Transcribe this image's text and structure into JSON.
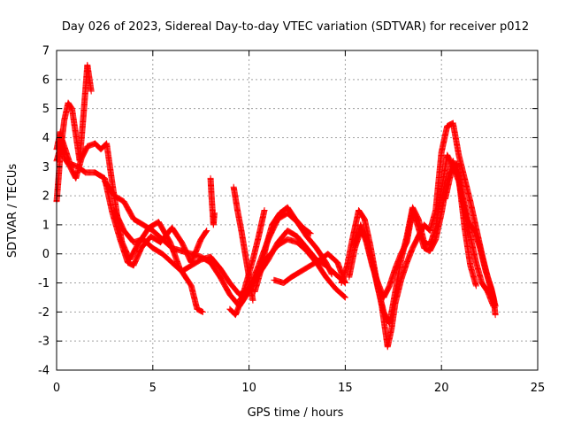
{
  "chart_data": {
    "type": "scatter",
    "title": "Day 026 of 2023, Sidereal Day-to-day VTEC variation (SDTVAR) for receiver p012",
    "xlabel": "GPS time / hours",
    "ylabel": "SDTVAR / TECUs",
    "xlim": [
      0,
      25
    ],
    "ylim": [
      -4,
      7
    ],
    "xticks": [
      "0",
      "5",
      "10",
      "15",
      "20",
      "25"
    ],
    "yticks": [
      "-4",
      "-3",
      "-2",
      "-1",
      "0",
      "1",
      "2",
      "3",
      "4",
      "5",
      "6",
      "7"
    ],
    "grid": true,
    "marker": "+",
    "series": [
      {
        "name": "SDTVAR",
        "color": "#ff0000",
        "tracks": [
          {
            "x": [
              0.0,
              0.1,
              0.2,
              0.4,
              0.6,
              0.8,
              1.0,
              1.2,
              1.4,
              1.6,
              1.8
            ],
            "y": [
              1.8,
              2.6,
              3.5,
              4.6,
              5.2,
              5.0,
              4.1,
              3.2,
              4.8,
              6.5,
              5.6
            ]
          },
          {
            "x": [
              0.0,
              0.2,
              0.4,
              0.7,
              1.0,
              1.3,
              1.6,
              2.0,
              2.3,
              2.6,
              2.9,
              3.2,
              3.4,
              3.6,
              3.8,
              4.2,
              4.8,
              5.3,
              5.9,
              6.4,
              7.0,
              7.3,
              7.6
            ],
            "y": [
              3.6,
              4.2,
              3.3,
              3.0,
              2.6,
              3.3,
              3.7,
              3.8,
              3.6,
              3.8,
              2.4,
              1.1,
              0.4,
              0.1,
              -0.2,
              0.3,
              0.9,
              1.1,
              0.4,
              -0.5,
              -1.1,
              -1.9,
              -2.0
            ]
          },
          {
            "x": [
              0.0,
              0.3,
              0.7,
              1.1,
              1.5,
              2.0,
              2.5,
              2.9,
              3.3,
              3.7,
              4.0,
              4.4,
              4.9,
              5.4,
              6.0,
              6.5,
              7.0,
              7.5,
              7.8
            ],
            "y": [
              3.2,
              3.9,
              3.1,
              3.0,
              2.8,
              2.8,
              2.6,
              1.4,
              0.5,
              -0.3,
              -0.4,
              0.2,
              0.6,
              0.4,
              0.9,
              0.4,
              -0.3,
              0.5,
              0.8
            ]
          },
          {
            "x": [
              2.5,
              3.0,
              3.5,
              4.0,
              4.5,
              5.0,
              5.5,
              6.0,
              6.5,
              7.0,
              7.5,
              8.0,
              8.5,
              9.0,
              9.5,
              10.0,
              10.5,
              11.0,
              11.5,
              12.0,
              12.5,
              13.0,
              13.5,
              14.0,
              14.5,
              15.0
            ],
            "y": [
              2.5,
              2.0,
              1.8,
              1.2,
              1.0,
              0.8,
              0.5,
              0.2,
              0.1,
              0.0,
              -0.1,
              -0.3,
              -0.8,
              -1.4,
              -1.8,
              -1.3,
              -0.6,
              -0.1,
              0.3,
              0.5,
              0.4,
              0.1,
              -0.3,
              -0.8,
              -1.2,
              -1.5
            ]
          },
          {
            "x": [
              3.0,
              3.5,
              4.0,
              4.5,
              5.0,
              5.5,
              6.0,
              6.5,
              7.0,
              7.5,
              8.0,
              8.5,
              9.0,
              9.5,
              10.0,
              10.5,
              11.0,
              11.5,
              12.0,
              12.5,
              13.0,
              13.5,
              14.0,
              14.5,
              15.0
            ],
            "y": [
              1.5,
              0.8,
              0.4,
              0.5,
              0.2,
              0.0,
              -0.3,
              -0.6,
              -0.4,
              -0.2,
              -0.1,
              -0.5,
              -1.0,
              -1.4,
              -1.2,
              -0.7,
              -0.2,
              0.4,
              0.8,
              0.6,
              0.2,
              -0.2,
              -0.4,
              -0.7,
              -1.0
            ]
          },
          {
            "x": [
              8.0,
              8.05,
              8.1,
              8.15,
              8.2
            ],
            "y": [
              2.6,
              2.0,
              1.5,
              1.0,
              1.4
            ]
          },
          {
            "x": [
              9.2,
              9.4,
              9.6,
              9.8,
              10.0,
              10.2
            ],
            "y": [
              2.3,
              1.5,
              0.8,
              0.0,
              -0.8,
              -1.6
            ]
          },
          {
            "x": [
              9.5,
              10.0,
              10.5,
              11.0,
              11.5,
              12.0,
              12.5,
              13.0,
              13.5,
              14.0,
              14.3
            ],
            "y": [
              -1.6,
              -1.2,
              -0.4,
              0.5,
              1.2,
              1.4,
              1.1,
              0.6,
              0.2,
              -0.3,
              -0.7
            ]
          },
          {
            "x": [
              10.3,
              10.6,
              10.9,
              11.2,
              11.6,
              12.0,
              12.4,
              12.8,
              13.2
            ],
            "y": [
              -1.3,
              -0.6,
              0.3,
              1.0,
              1.4,
              1.6,
              1.2,
              0.9,
              0.7
            ]
          },
          {
            "x": [
              9.0,
              9.3,
              9.6,
              9.9,
              10.2,
              10.5,
              10.8
            ],
            "y": [
              -1.9,
              -2.1,
              -1.6,
              -0.9,
              -0.2,
              0.6,
              1.5
            ]
          },
          {
            "x": [
              11.3,
              11.8,
              12.2,
              12.7,
              13.2,
              13.7,
              14.1,
              14.6,
              15.0
            ],
            "y": [
              -0.9,
              -1.0,
              -0.8,
              -0.6,
              -0.4,
              -0.2,
              0.0,
              -0.3,
              -1.0
            ]
          },
          {
            "x": [
              14.8,
              15.1,
              15.4,
              15.7,
              16.0,
              16.3,
              16.6,
              16.9,
              17.2,
              17.4,
              17.6,
              17.9,
              18.2,
              18.5,
              18.8,
              19.1,
              19.4,
              19.7,
              20.0,
              20.3,
              20.6,
              20.9,
              21.2,
              21.5,
              21.8,
              22.1,
              22.4,
              22.7,
              22.8
            ],
            "y": [
              -1.0,
              -0.4,
              0.6,
              1.5,
              1.2,
              0.3,
              -0.8,
              -1.8,
              -3.2,
              -2.6,
              -1.7,
              -0.9,
              -0.3,
              0.2,
              0.6,
              1.0,
              0.8,
              1.5,
              3.5,
              4.4,
              4.5,
              3.4,
              2.6,
              1.8,
              0.9,
              0.0,
              -0.8,
              -1.5,
              -2.1
            ]
          },
          {
            "x": [
              15.2,
              15.5,
              15.8,
              16.1,
              16.4,
              16.7,
              17.0,
              17.3,
              17.6,
              17.9,
              18.2,
              18.5,
              18.8,
              19.1,
              19.4,
              19.7,
              20.0,
              20.3,
              20.6,
              20.9,
              21.2,
              21.5,
              21.8,
              22.1,
              22.4,
              22.7
            ],
            "y": [
              -0.8,
              0.2,
              0.8,
              0.5,
              -0.3,
              -1.2,
              -2.0,
              -2.4,
              -1.3,
              -0.2,
              0.6,
              1.6,
              1.2,
              0.4,
              0.3,
              0.9,
              2.2,
              3.4,
              3.0,
              2.5,
              1.5,
              0.6,
              -0.3,
              -1.0,
              -1.3,
              -1.8
            ]
          },
          {
            "x": [
              15.5,
              15.8,
              16.1,
              16.4,
              16.7,
              17.0,
              17.3,
              17.6,
              17.9,
              18.2,
              18.5,
              18.8,
              19.1,
              19.4,
              19.7,
              20.0,
              20.3,
              20.6,
              20.9,
              21.2,
              21.5,
              21.8
            ],
            "y": [
              0.3,
              1.0,
              0.4,
              -0.4,
              -1.0,
              -1.5,
              -1.1,
              -0.5,
              0.0,
              0.4,
              1.5,
              0.9,
              0.2,
              0.1,
              0.5,
              1.4,
              2.5,
              3.2,
              2.6,
              0.9,
              -0.4,
              -1.1
            ]
          },
          {
            "x": [
              20.2,
              20.5,
              20.8,
              21.1,
              21.4,
              21.7,
              22.0,
              22.3,
              22.6,
              22.8
            ],
            "y": [
              1.9,
              2.8,
              3.1,
              2.0,
              1.1,
              0.8,
              0.2,
              -0.6,
              -1.2,
              -1.8
            ]
          }
        ]
      }
    ]
  }
}
